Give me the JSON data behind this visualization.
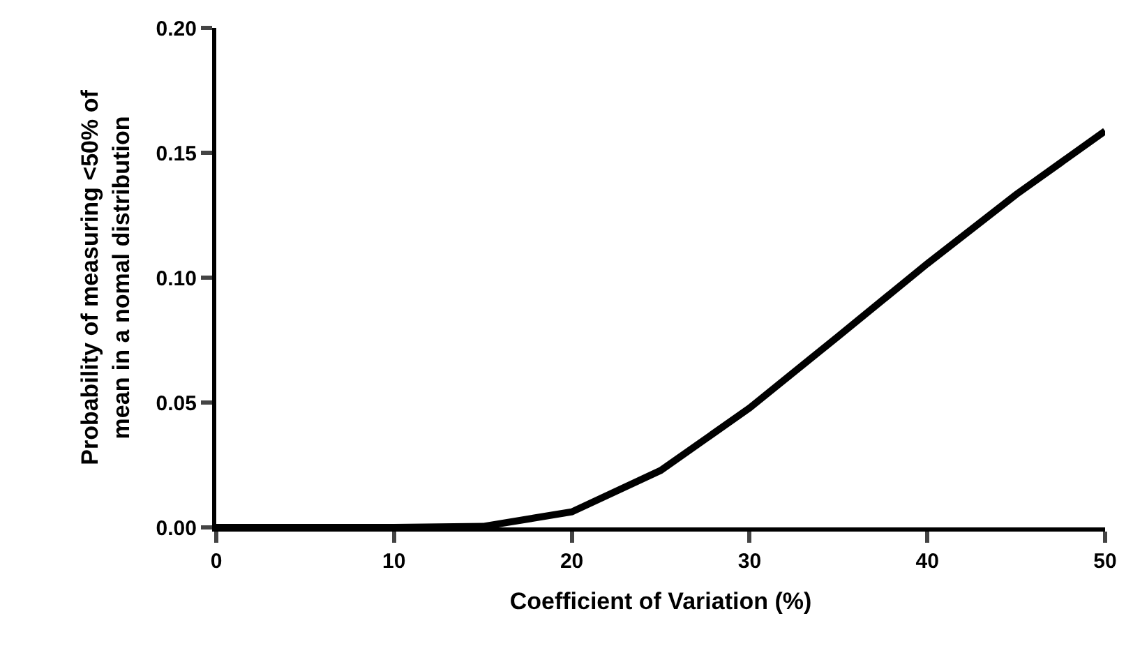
{
  "chart_data": {
    "type": "line",
    "xlabel": "Coefficient of Variation (%)",
    "ylabel": "Probability of measuring <50% of\nmean in a nomal distribution",
    "x": [
      0,
      5,
      10,
      15,
      20,
      25,
      30,
      35,
      40,
      45,
      50
    ],
    "series": [
      {
        "color": "#000000",
        "values": [
          0,
          0,
          0,
          0.0004,
          0.0062,
          0.0228,
          0.0478,
          0.0766,
          0.1056,
          0.1333,
          0.1587
        ]
      }
    ],
    "xlim": [
      0,
      50
    ],
    "xticks": [
      0,
      10,
      20,
      30,
      40,
      50
    ],
    "ylim": [
      0,
      0.2
    ],
    "yticks": [
      {
        "value": 0,
        "label": "0.00"
      },
      {
        "value": 0.05,
        "label": "0.05"
      },
      {
        "value": 0.1,
        "label": "0.10"
      },
      {
        "value": 0.15,
        "label": "0.15"
      },
      {
        "value": 0.2,
        "label": "0.20"
      }
    ],
    "marker": "none",
    "line_style": "solid"
  }
}
